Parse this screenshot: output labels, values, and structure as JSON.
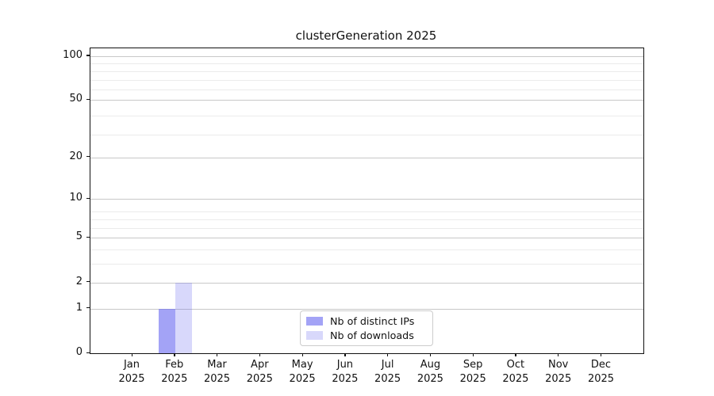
{
  "window": {
    "title": "clusterGeneration 2025"
  },
  "chart_data": {
    "type": "bar",
    "title": "clusterGeneration 2025",
    "xlabel": "",
    "ylabel": "",
    "x_categories": [
      "Jan 2025",
      "Feb 2025",
      "Mar 2025",
      "Apr 2025",
      "May 2025",
      "Jun 2025",
      "Jul 2025",
      "Aug 2025",
      "Sep 2025",
      "Oct 2025",
      "Nov 2025",
      "Dec 2025"
    ],
    "x_tick_months": [
      "Jan",
      "Feb",
      "Mar",
      "Apr",
      "May",
      "Jun",
      "Jul",
      "Aug",
      "Sep",
      "Oct",
      "Nov",
      "Dec"
    ],
    "x_tick_year": "2025",
    "series": [
      {
        "name": "Nb of distinct IPs",
        "color": "rgba(106,106,240,0.62)",
        "color_hex_on_white": "#a6a6f4",
        "values": [
          0,
          1,
          0,
          0,
          0,
          0,
          0,
          0,
          0,
          0,
          0,
          0
        ]
      },
      {
        "name": "Nb of downloads",
        "color": "rgba(106,106,240,0.26)",
        "color_hex_on_white": "#dadaf7",
        "values": [
          0,
          2,
          0,
          0,
          0,
          0,
          0,
          0,
          0,
          0,
          0,
          0
        ]
      }
    ],
    "y_scale": "log1p",
    "y_ticks": [
      0,
      1,
      2,
      5,
      10,
      20,
      50,
      100
    ],
    "y_minor_gridlines": [
      3,
      4,
      6,
      7,
      8,
      29,
      39,
      59,
      69,
      79,
      89
    ],
    "ylim": [
      0,
      113
    ],
    "grid": "horizontal",
    "legend_position": "lower-center",
    "annotations": []
  },
  "colors": {
    "bar_base": "#6a6af0",
    "grid_major": "#c8c8c8",
    "grid_minor": "#ebebeb",
    "spine": "#111111",
    "background": "#ffffff"
  }
}
